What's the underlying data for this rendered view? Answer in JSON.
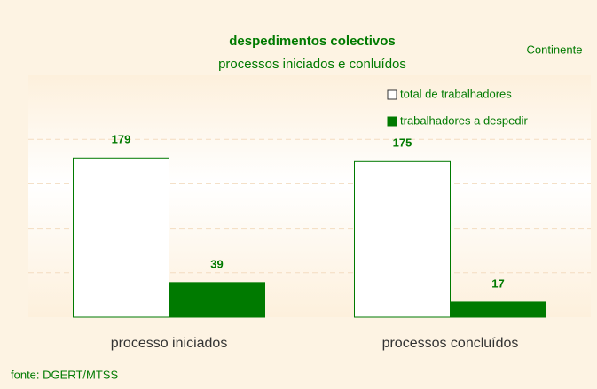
{
  "chart_data": {
    "type": "bar",
    "title": "despedimentos colectivos",
    "subtitle": "processos iniciados e conluídos",
    "annotation": "Continente",
    "source": "fonte: DGERT/MTSS",
    "categories": [
      "processo iniciados",
      "processos concluídos"
    ],
    "series": [
      {
        "name": "total de trabalhadores",
        "color": "#ffffff",
        "values": [
          179,
          175
        ]
      },
      {
        "name": "trabalhadores a despedir",
        "color": "#007a00",
        "values": [
          39,
          17
        ]
      }
    ],
    "ylim": [
      0,
      250
    ],
    "yticks": [
      0,
      50,
      100,
      150,
      200,
      250
    ],
    "grid": true,
    "legend": "top-right"
  }
}
